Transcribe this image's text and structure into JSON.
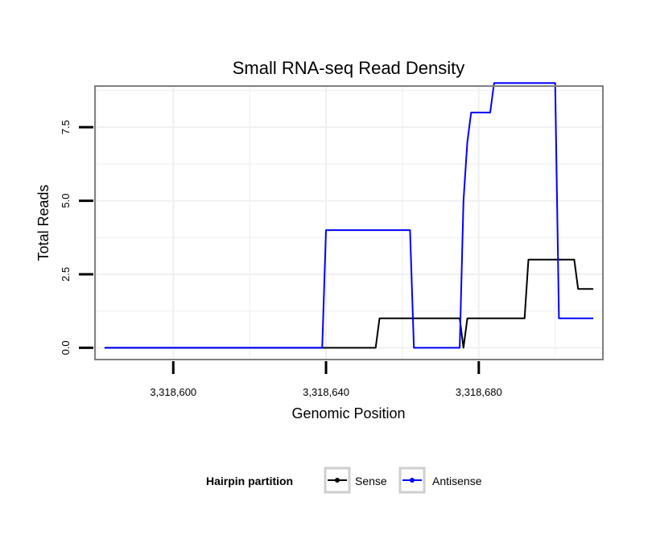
{
  "chart_data": {
    "type": "line",
    "title": "Small RNA-seq Read Density",
    "xlabel": "Genomic Position",
    "ylabel": "Total Reads",
    "xlim": [
      3318579.5,
      3318712.5
    ],
    "ylim": [
      -0.4,
      8.9
    ],
    "x_ticks": [
      3318600,
      3318640,
      3318680
    ],
    "x_tick_labels": [
      "3,318,600",
      "3,318,640",
      "3,318,680"
    ],
    "y_ticks": [
      0,
      2.5,
      5,
      7.5
    ],
    "y_tick_labels": [
      "0.0",
      "2.5",
      "5.0",
      "7.5"
    ],
    "grid": true,
    "legend": {
      "title": "Hairpin partition",
      "position": "bottom",
      "entries": [
        "Sense",
        "Antisense"
      ]
    },
    "series": [
      {
        "name": "Sense",
        "color": "#000000",
        "points": [
          [
            3318582,
            0
          ],
          [
            3318653,
            0
          ],
          [
            3318654,
            1
          ],
          [
            3318675,
            1
          ],
          [
            3318676,
            0
          ],
          [
            3318677,
            1
          ],
          [
            3318692,
            1
          ],
          [
            3318693,
            3
          ],
          [
            3318705,
            3
          ],
          [
            3318706,
            2
          ],
          [
            3318710,
            2
          ]
        ]
      },
      {
        "name": "Antisense",
        "color": "#0000ff",
        "points": [
          [
            3318582,
            0
          ],
          [
            3318639,
            0
          ],
          [
            3318640,
            4
          ],
          [
            3318662,
            4
          ],
          [
            3318663,
            0
          ],
          [
            3318675,
            0
          ],
          [
            3318676,
            5
          ],
          [
            3318677,
            7
          ],
          [
            3318678,
            8
          ],
          [
            3318683,
            8
          ],
          [
            3318684,
            9
          ],
          [
            3318700,
            9
          ],
          [
            3318701,
            1
          ],
          [
            3318710,
            1
          ]
        ]
      }
    ]
  }
}
